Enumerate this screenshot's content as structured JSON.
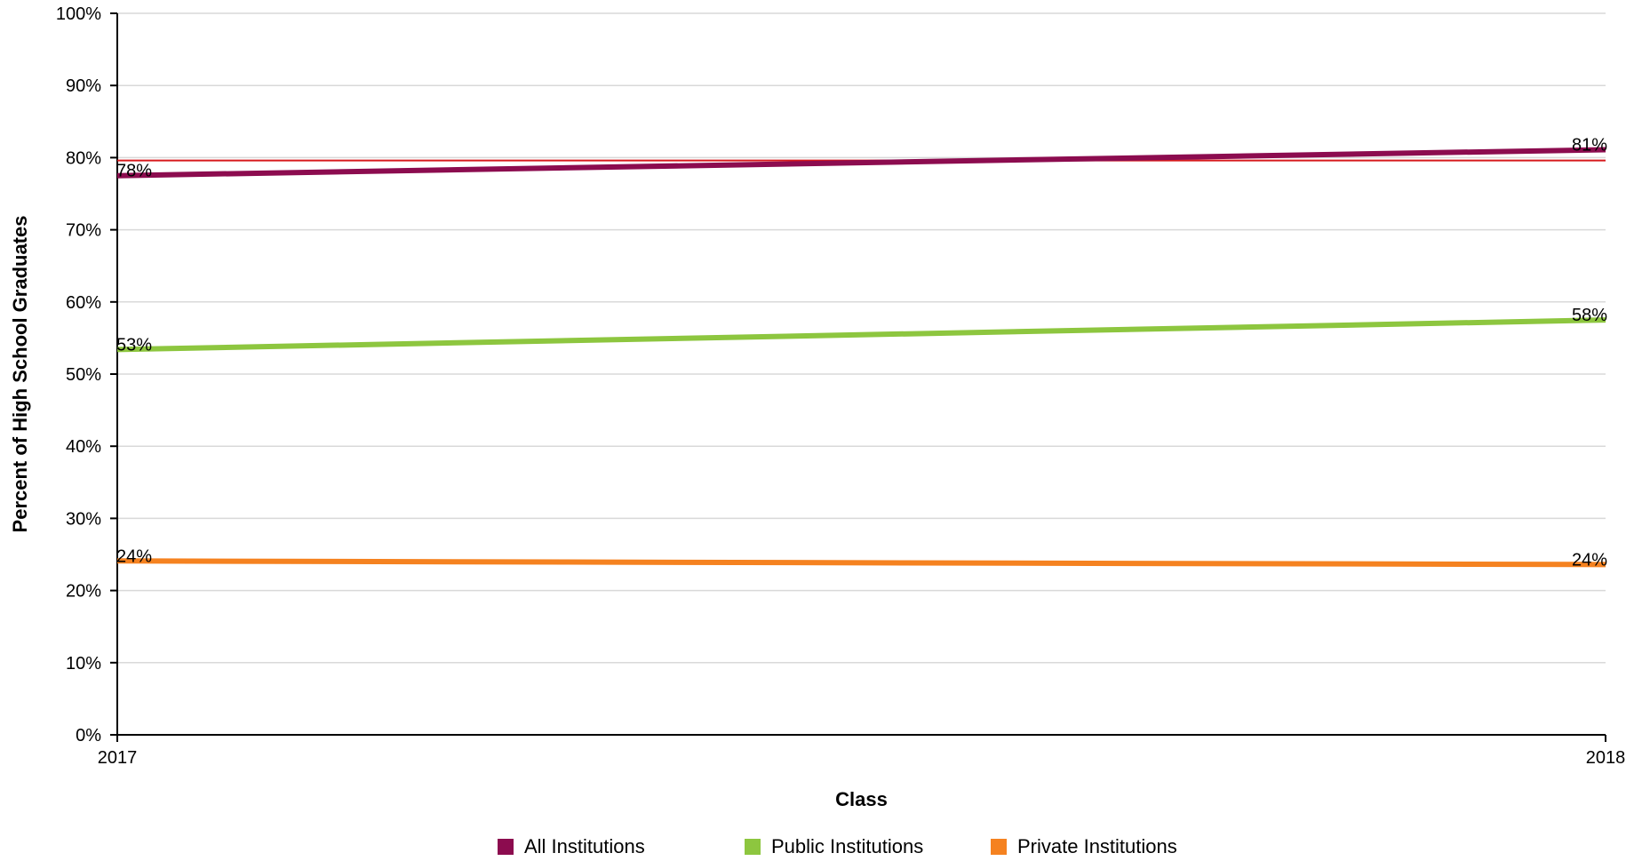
{
  "chart_data": {
    "type": "line",
    "x": [
      "2017",
      "2018"
    ],
    "xlabel": "Class",
    "ylabel": "Percent of High School Graduates",
    "ylim": [
      0,
      100
    ],
    "yticks": [
      "0%",
      "10%",
      "20%",
      "30%",
      "40%",
      "50%",
      "60%",
      "70%",
      "80%",
      "90%",
      "100%"
    ],
    "grid": true,
    "reference_line": {
      "value": 79.6,
      "color": "#d7191c"
    },
    "series": [
      {
        "name": "All Institutions",
        "color": "#8c0c4f",
        "values": [
          77.5,
          81.1
        ],
        "labels": [
          "78%",
          "81%"
        ]
      },
      {
        "name": "Public Institutions",
        "color": "#8dc63f",
        "values": [
          53.4,
          57.5
        ],
        "labels": [
          "53%",
          "58%"
        ]
      },
      {
        "name": "Private Institutions",
        "color": "#f58220",
        "values": [
          24.1,
          23.6
        ],
        "labels": [
          "24%",
          "24%"
        ]
      }
    ],
    "legend_position": "bottom"
  }
}
